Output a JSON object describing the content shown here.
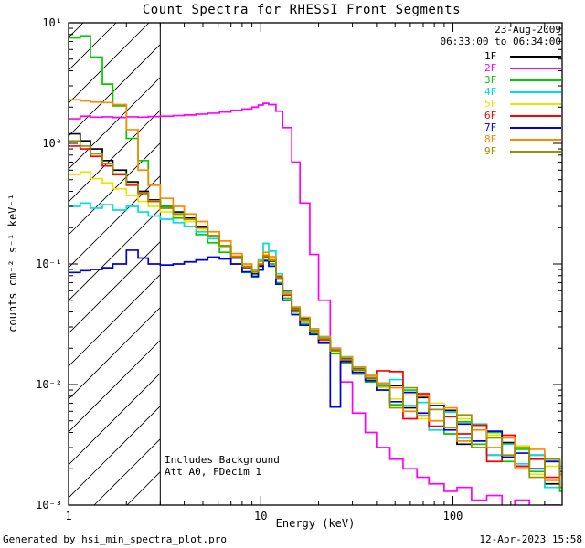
{
  "header": {
    "title": "Count Spectra for RHESSI Front Segments"
  },
  "annotations": {
    "date": "23-Aug-2009",
    "time_range": "06:33:00 to 06:34:00",
    "background_note": "Includes Background",
    "att_note": "Att A0, FDecim 1"
  },
  "footer": {
    "generated_by": "Generated by hsi_min_spectra_plot.pro",
    "timestamp": "12-Apr-2023 15:58"
  },
  "chart_data": {
    "type": "line",
    "mode": "histogram-step",
    "xscale": "log",
    "yscale": "log",
    "xlim": [
      1,
      370
    ],
    "ylim": [
      0.001,
      10
    ],
    "xlabel": "Energy (keV)",
    "ylabel": "counts cm⁻² s⁻¹ keV⁻¹",
    "grid": false,
    "legend_position": "top-right",
    "xticks": {
      "values": [
        1,
        10,
        100
      ],
      "labels": [
        "1",
        "10",
        "100"
      ]
    },
    "yticks": {
      "values": [
        10,
        1,
        0.1,
        0.01,
        0.001
      ],
      "labels": [
        "10¹",
        "10⁰",
        "10⁻¹",
        "10⁻²",
        "10⁻³"
      ]
    },
    "excluded_region": {
      "xmin": 1,
      "xmax": 3,
      "style": "diagonal-hatch"
    },
    "energy_kev": [
      1.0,
      1.15,
      1.3,
      1.5,
      1.7,
      2.0,
      2.3,
      2.6,
      3.0,
      3.5,
      4.0,
      4.6,
      5.3,
      6.1,
      7.0,
      8.0,
      9.0,
      9.7,
      10.3,
      11.0,
      12.0,
      13.0,
      14.5,
      16.0,
      18.0,
      20.0,
      23.0,
      26.0,
      30.0,
      35.0,
      40.0,
      47.0,
      55.0,
      65.0,
      75.0,
      90.0,
      105.0,
      125.0,
      150.0,
      180.0,
      210.0,
      250.0,
      300.0,
      360.0,
      400.0
    ],
    "series": [
      {
        "name": "1F",
        "color": "#000000",
        "values": [
          1.2,
          1.05,
          0.9,
          0.72,
          0.6,
          0.48,
          0.4,
          0.34,
          0.3,
          0.27,
          0.24,
          0.205,
          0.17,
          0.14,
          0.112,
          0.092,
          0.083,
          0.096,
          0.118,
          0.108,
          0.078,
          0.06,
          0.043,
          0.035,
          0.028,
          0.024,
          0.019,
          0.0165,
          0.0135,
          0.0112,
          0.01,
          0.0098,
          0.0064,
          0.0078,
          0.0045,
          0.0061,
          0.0032,
          0.0046,
          0.0026,
          0.0033,
          0.0021,
          0.0026,
          0.0015,
          0.0018,
          0.0012
        ]
      },
      {
        "name": "2F",
        "color": "#ff00ff",
        "values": [
          1.6,
          1.68,
          1.65,
          1.66,
          1.64,
          1.66,
          1.65,
          1.67,
          1.68,
          1.7,
          1.72,
          1.75,
          1.78,
          1.82,
          1.88,
          1.93,
          2.0,
          2.08,
          2.15,
          2.1,
          1.85,
          1.35,
          0.7,
          0.32,
          0.12,
          0.05,
          0.02,
          0.0105,
          0.0058,
          0.004,
          0.003,
          0.0024,
          0.002,
          0.0017,
          0.0015,
          0.0013,
          0.0014,
          0.0011,
          0.0012,
          0.0009,
          0.0011,
          0.0008,
          0.001,
          0.0007,
          0.0008
        ]
      },
      {
        "name": "3F",
        "color": "#00cc00",
        "values": [
          7.5,
          7.8,
          5.2,
          3.1,
          2.05,
          1.1,
          0.72,
          0.45,
          0.3,
          0.24,
          0.205,
          0.175,
          0.15,
          0.125,
          0.1,
          0.085,
          0.078,
          0.09,
          0.108,
          0.1,
          0.07,
          0.052,
          0.04,
          0.032,
          0.0265,
          0.0225,
          0.018,
          0.015,
          0.0122,
          0.0105,
          0.009,
          0.0068,
          0.009,
          0.0055,
          0.0067,
          0.0039,
          0.0049,
          0.0032,
          0.004,
          0.0023,
          0.0029,
          0.0019,
          0.0023,
          0.0013,
          0.0016
        ]
      },
      {
        "name": "4F",
        "color": "#00dede",
        "values": [
          0.3,
          0.32,
          0.29,
          0.31,
          0.28,
          0.3,
          0.27,
          0.25,
          0.235,
          0.22,
          0.205,
          0.185,
          0.162,
          0.138,
          0.113,
          0.094,
          0.087,
          0.108,
          0.148,
          0.128,
          0.083,
          0.059,
          0.044,
          0.036,
          0.029,
          0.0245,
          0.0195,
          0.0168,
          0.0138,
          0.0118,
          0.0101,
          0.011,
          0.0067,
          0.0071,
          0.0042,
          0.0059,
          0.0036,
          0.0047,
          0.0026,
          0.0032,
          0.0022,
          0.0026,
          0.0014,
          0.0021,
          0.0012
        ]
      },
      {
        "name": "5F",
        "color": "#e6e600",
        "values": [
          0.55,
          0.58,
          0.51,
          0.47,
          0.42,
          0.37,
          0.33,
          0.3,
          0.27,
          0.25,
          0.225,
          0.195,
          0.168,
          0.14,
          0.114,
          0.094,
          0.085,
          0.099,
          0.12,
          0.11,
          0.076,
          0.056,
          0.042,
          0.034,
          0.0275,
          0.0235,
          0.0188,
          0.0158,
          0.013,
          0.011,
          0.0094,
          0.0076,
          0.0082,
          0.0052,
          0.007,
          0.0044,
          0.0052,
          0.003,
          0.0038,
          0.0026,
          0.0031,
          0.0018,
          0.0021,
          0.0014,
          0.0017
        ]
      },
      {
        "name": "6F",
        "color": "#ff0000",
        "values": [
          0.95,
          0.9,
          0.78,
          0.65,
          0.55,
          0.45,
          0.385,
          0.33,
          0.29,
          0.26,
          0.235,
          0.2,
          0.172,
          0.142,
          0.115,
          0.095,
          0.086,
          0.098,
          0.115,
          0.105,
          0.075,
          0.055,
          0.0415,
          0.0335,
          0.0275,
          0.0235,
          0.0192,
          0.016,
          0.0132,
          0.0113,
          0.013,
          0.0128,
          0.0052,
          0.0084,
          0.0045,
          0.0054,
          0.0039,
          0.0046,
          0.0023,
          0.0038,
          0.0021,
          0.0024,
          0.0017,
          0.0019,
          0.0011
        ]
      },
      {
        "name": "7F",
        "color": "#0000dd",
        "values": [
          0.085,
          0.088,
          0.09,
          0.093,
          0.1,
          0.13,
          0.112,
          0.1,
          0.098,
          0.1,
          0.104,
          0.108,
          0.114,
          0.11,
          0.1,
          0.086,
          0.079,
          0.089,
          0.106,
          0.096,
          0.068,
          0.05,
          0.038,
          0.031,
          0.026,
          0.022,
          0.0065,
          0.0155,
          0.0126,
          0.0108,
          0.009,
          0.0072,
          0.0086,
          0.0058,
          0.0067,
          0.0042,
          0.0047,
          0.0034,
          0.0041,
          0.0025,
          0.0027,
          0.002,
          0.0023,
          0.0014,
          0.0015
        ]
      },
      {
        "name": "8F",
        "color": "#ff8800",
        "values": [
          2.3,
          2.25,
          2.2,
          2.18,
          2.1,
          1.3,
          0.6,
          0.45,
          0.35,
          0.3,
          0.26,
          0.225,
          0.185,
          0.155,
          0.122,
          0.1,
          0.09,
          0.105,
          0.125,
          0.115,
          0.08,
          0.058,
          0.044,
          0.036,
          0.029,
          0.025,
          0.02,
          0.017,
          0.014,
          0.0119,
          0.0103,
          0.0094,
          0.006,
          0.0081,
          0.005,
          0.0064,
          0.0034,
          0.0042,
          0.003,
          0.0036,
          0.002,
          0.0029,
          0.0016,
          0.0018,
          0.0013
        ]
      },
      {
        "name": "9F",
        "color": "#949400",
        "values": [
          1.05,
          0.95,
          0.82,
          0.68,
          0.56,
          0.46,
          0.39,
          0.335,
          0.29,
          0.26,
          0.235,
          0.202,
          0.172,
          0.142,
          0.116,
          0.096,
          0.086,
          0.1,
          0.117,
          0.107,
          0.077,
          0.056,
          0.0425,
          0.0345,
          0.028,
          0.024,
          0.019,
          0.0162,
          0.0133,
          0.0114,
          0.0097,
          0.0064,
          0.0094,
          0.0055,
          0.0062,
          0.0044,
          0.0056,
          0.003,
          0.0036,
          0.0026,
          0.003,
          0.0017,
          0.0024,
          0.0014,
          0.0015
        ]
      }
    ]
  }
}
